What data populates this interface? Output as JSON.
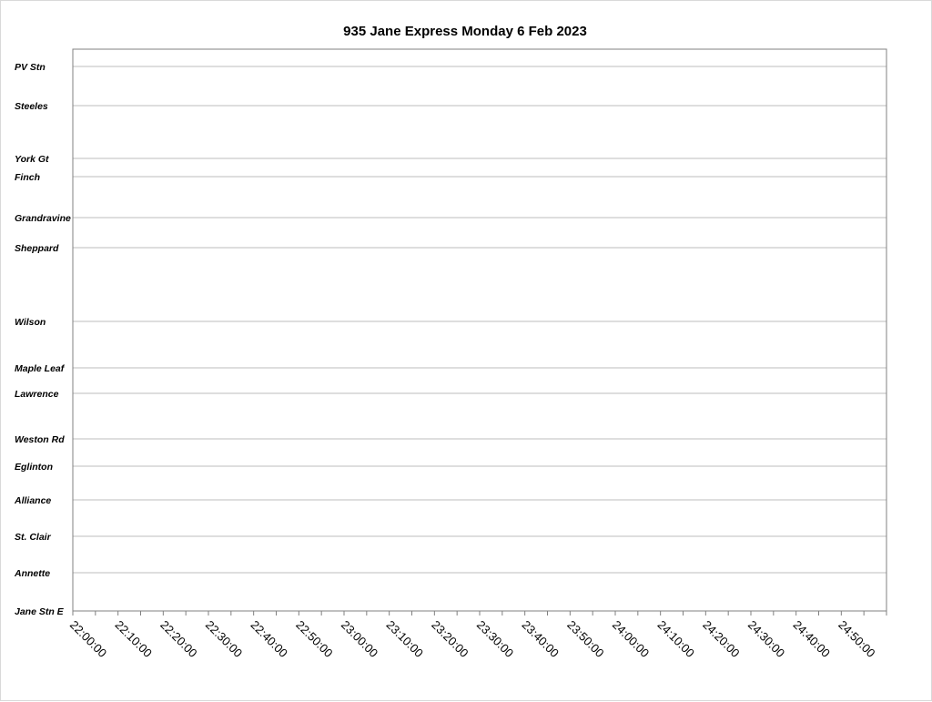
{
  "chart_data": {
    "type": "line",
    "title": "935 Jane Express Monday 6 Feb 2023",
    "xlabel": "",
    "ylabel": "",
    "xlim": [
      "22:00:00",
      "25:00:00"
    ],
    "x_tick_labels": [
      "22:00:00",
      "22:10:00",
      "22:20:00",
      "22:30:00",
      "22:40:00",
      "22:50:00",
      "23:00:00",
      "23:10:00",
      "23:20:00",
      "23:30:00",
      "23:40:00",
      "23:50:00",
      "24:00:00",
      "24:10:00",
      "24:20:00",
      "24:30:00",
      "24:40:00",
      "24:50:00"
    ],
    "x_minor_tick_interval_minutes": 5,
    "y_categories": [
      "PV Stn",
      "Steeles",
      "York Gt",
      "Finch",
      "Grandravine",
      "Sheppard",
      "Wilson",
      "Maple Leaf",
      "Lawrence",
      "Weston Rd",
      "Eglinton",
      "Alliance",
      "St. Clair",
      "Annette",
      "Jane Stn E"
    ],
    "series": [],
    "grid": true,
    "colors": {
      "frame": "#808080",
      "grid": "#a6a6a6"
    }
  }
}
